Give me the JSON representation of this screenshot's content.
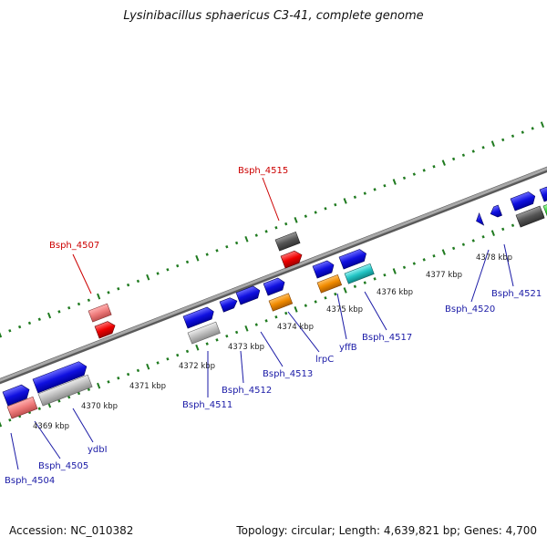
{
  "title": "Lysinibacillus sphaericus C3-41, complete genome",
  "footer": {
    "accession": "Accession: NC_010382",
    "summary": "Topology: circular; Length: 4,639,821 bp; Genes: 4,700"
  },
  "kbp_labels": [
    "4369 kbp",
    "4370 kbp",
    "4371 kbp",
    "4372 kbp",
    "4373 kbp",
    "4374 kbp",
    "4375 kbp",
    "4376 kbp",
    "4377 kbp",
    "4378 kbp"
  ],
  "gene_labels": {
    "bsph_4507": "Bsph_4507",
    "bsph_4515": "Bsph_4515",
    "bsph_4504": "Bsph_4504",
    "bsph_4505": "Bsph_4505",
    "ydbl": "ydbI",
    "bsph_4511": "Bsph_4511",
    "bsph_4512": "Bsph_4512",
    "bsph_4513": "Bsph_4513",
    "lrpc": "lrpC",
    "yffb": "yffB",
    "bsph_4517": "Bsph_4517",
    "bsph_4520": "Bsph_4520",
    "bsph_4521": "Bsph_4521"
  },
  "colors": {
    "backbone": "#8a8a8a",
    "tick": "#1f7a1f",
    "cds_blue": "#1010e0",
    "cds_red": "#ee0000",
    "cds_pink": "#ee7a7a",
    "cds_gray": "#bdbdbd",
    "cds_dark": "#555555",
    "cds_orange": "#f08a00",
    "cds_cyan": "#22c4c4",
    "cds_green": "#30d030",
    "label_red": "#cc0000",
    "label_blue": "#1a1aa6"
  }
}
